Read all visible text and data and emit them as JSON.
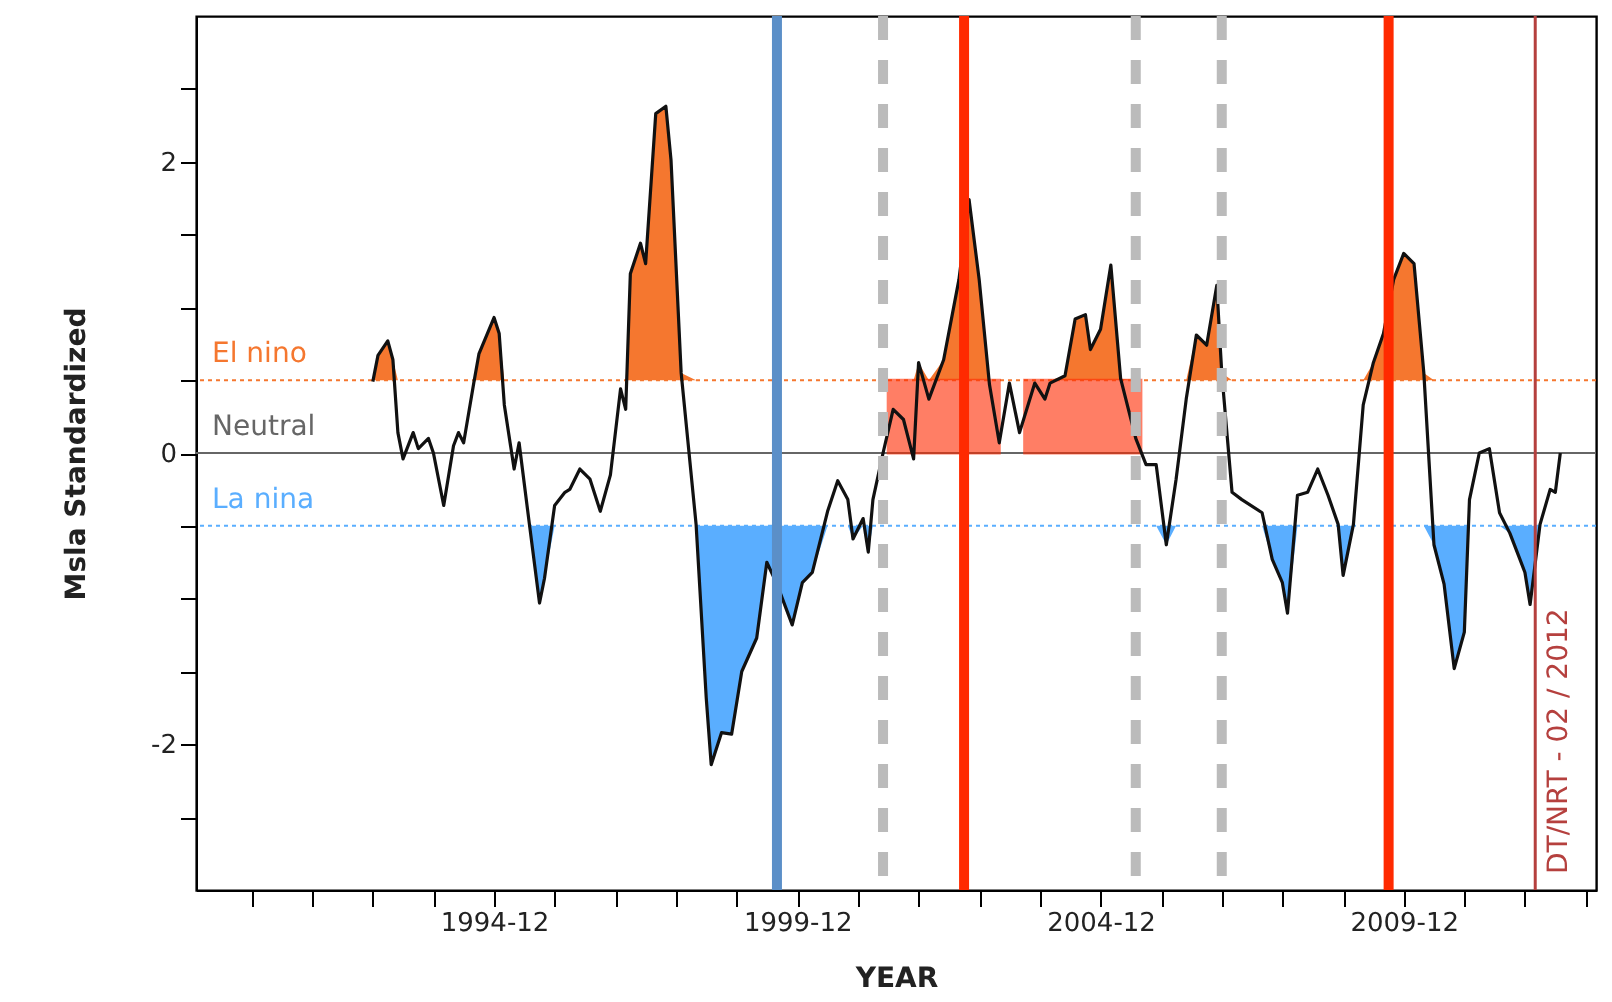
{
  "chart_data": {
    "type": "line",
    "xlabel": "YEAR",
    "ylabel": "Msla Standardized",
    "x": [
      "1992-12",
      "1993-01",
      "1993-03",
      "1993-04",
      "1993-05",
      "1993-06",
      "1993-08",
      "1993-09",
      "1993-11",
      "1993-12",
      "1994-02",
      "1994-04",
      "1994-05",
      "1994-06",
      "1994-08",
      "1994-09",
      "1994-12",
      "1995-01",
      "1995-02",
      "1995-04",
      "1995-05",
      "1995-07",
      "1995-09",
      "1995-10",
      "1995-12",
      "1996-02",
      "1996-03",
      "1996-05",
      "1996-07",
      "1996-09",
      "1996-11",
      "1997-01",
      "1997-02",
      "1997-03",
      "1997-05",
      "1997-06",
      "1997-08",
      "1997-10",
      "1997-11",
      "1998-01",
      "1998-04",
      "1998-06",
      "1998-07",
      "1998-09",
      "1998-11",
      "1999-01",
      "1999-04",
      "1999-06",
      "1999-08",
      "1999-11",
      "2000-01",
      "2000-03",
      "2000-06",
      "2000-08",
      "2000-10",
      "2000-11",
      "2001-01",
      "2001-02",
      "2001-03",
      "2001-05",
      "2001-07",
      "2001-09",
      "2001-11",
      "2001-12",
      "2002-02",
      "2002-05",
      "2002-08",
      "2002-10",
      "2002-12",
      "2003-02",
      "2003-04",
      "2003-06",
      "2003-08",
      "2003-11",
      "2004-01",
      "2004-02",
      "2004-05",
      "2004-07",
      "2004-09",
      "2004-10",
      "2004-12",
      "2005-02",
      "2005-04",
      "2005-07",
      "2005-09",
      "2005-11",
      "2006-01",
      "2006-03",
      "2006-05",
      "2006-07",
      "2006-09",
      "2006-11",
      "2006-12",
      "2007-02",
      "2007-04",
      "2007-08",
      "2007-10",
      "2007-12",
      "2008-01",
      "2008-03",
      "2008-05",
      "2008-07",
      "2008-09",
      "2008-11",
      "2008-12",
      "2009-02",
      "2009-04",
      "2009-06",
      "2009-08",
      "2009-10",
      "2009-12",
      "2010-02",
      "2010-04",
      "2010-06",
      "2010-08",
      "2010-10",
      "2010-12",
      "2011-01",
      "2011-03",
      "2011-05",
      "2011-07",
      "2011-09",
      "2011-11",
      "2011-12",
      "2012-01",
      "2012-03",
      "2012-05",
      "2012-06",
      "2012-07"
    ],
    "series": [
      {
        "color": "#111111",
        "values": [
          0.49,
          0.67,
          0.77,
          0.64,
          0.14,
          -0.04,
          0.14,
          0.03,
          0.1,
          0,
          -0.36,
          0.05,
          0.14,
          0.07,
          0.48,
          0.68,
          0.93,
          0.82,
          0.33,
          -0.11,
          0.07,
          -0.48,
          -1.03,
          -0.86,
          -0.36,
          -0.27,
          -0.25,
          -0.11,
          -0.18,
          -0.4,
          -0.15,
          0.44,
          0.3,
          1.23,
          1.44,
          1.3,
          2.33,
          2.38,
          2.01,
          0.55,
          -0.49,
          -1.68,
          -2.14,
          -1.92,
          -1.93,
          -1.5,
          -1.27,
          -0.75,
          -0.9,
          -1.18,
          -0.89,
          -0.82,
          -0.4,
          -0.19,
          -0.32,
          -0.59,
          -0.45,
          -0.68,
          -0.32,
          0,
          0.3,
          0.23,
          -0.04,
          0.62,
          0.37,
          0.64,
          1.19,
          1.74,
          1.19,
          0.47,
          0.07,
          0.48,
          0.14,
          0.48,
          0.37,
          0.48,
          0.53,
          0.92,
          0.95,
          0.71,
          0.85,
          1.29,
          0.51,
          0.1,
          -0.08,
          -0.08,
          -0.63,
          -0.18,
          0.37,
          0.81,
          0.74,
          1.15,
          0.55,
          -0.27,
          -0.32,
          -0.41,
          -0.73,
          -0.89,
          -1.1,
          -0.29,
          -0.27,
          -0.11,
          -0.29,
          -0.49,
          -0.84,
          -0.49,
          0.33,
          0.62,
          0.82,
          1.19,
          1.37,
          1.3,
          0.55,
          -0.63,
          -0.9,
          -1.48,
          -1.23,
          -0.32,
          0,
          0.03,
          -0.41,
          -0.55,
          -0.73,
          -0.82,
          -1.04,
          -0.49,
          -0.25,
          -0.27,
          0
        ]
      }
    ],
    "xlim": [
      "1990-01",
      "2013-02"
    ],
    "xticks": [
      {
        "value": "1990-12",
        "label": null
      },
      {
        "value": "1991-12",
        "label": null
      },
      {
        "value": "1992-12",
        "label": null
      },
      {
        "value": "1993-12",
        "label": null
      },
      "1994-12",
      {
        "value": "1995-12",
        "label": null
      },
      {
        "value": "1996-12",
        "label": null
      },
      {
        "value": "1997-12",
        "label": null
      },
      {
        "value": "1998-12",
        "label": null
      },
      "1999-12",
      {
        "value": "2000-12",
        "label": null
      },
      {
        "value": "2001-12",
        "label": null
      },
      {
        "value": "2002-12",
        "label": null
      },
      {
        "value": "2003-12",
        "label": null
      },
      "2004-12",
      {
        "value": "2005-12",
        "label": null
      },
      {
        "value": "2006-12",
        "label": null
      },
      {
        "value": "2007-12",
        "label": null
      },
      {
        "value": "2008-12",
        "label": null
      },
      "2009-12",
      {
        "value": "2010-12",
        "label": null
      },
      {
        "value": "2011-12",
        "label": null
      },
      {
        "value": "2012-12",
        "label": null
      }
    ],
    "ylim": [
      -3,
      3
    ],
    "yticks": [
      {
        "value": -2.5,
        "label": null
      },
      -2,
      {
        "value": -1.5,
        "label": null
      },
      {
        "value": -1,
        "label": null
      },
      {
        "value": -0.5,
        "label": null
      },
      0,
      {
        "value": 0.5,
        "label": null
      },
      {
        "value": 1,
        "label": null
      },
      {
        "value": 1.5,
        "label": null
      },
      2,
      {
        "value": 2.5,
        "label": null
      }
    ],
    "ref_lines": [
      {
        "axis": "y",
        "value": 0.5,
        "label": "El nino",
        "color": "#f5772f",
        "line_style": "dotted"
      },
      {
        "axis": "y",
        "value": 0,
        "label": "Neutral",
        "color": "#666666"
      },
      {
        "axis": "y",
        "value": -0.5,
        "label": "La nina",
        "color": "#5aaeff",
        "line_style": "dotted"
      },
      {
        "axis": "x",
        "value": "1999-08",
        "color": "#5b8fc8"
      },
      {
        "axis": "x",
        "value": "2001-05",
        "color": "#bbbbbb",
        "line_style": "dashed"
      },
      {
        "axis": "x",
        "value": "2002-09",
        "color": "#ff2a00"
      },
      {
        "axis": "x",
        "value": "2005-07",
        "color": "#bbbbbb",
        "line_style": "dashed"
      },
      {
        "axis": "x",
        "value": "2006-12",
        "color": "#bbbbbb",
        "line_style": "dashed"
      },
      {
        "axis": "x",
        "value": "2009-09",
        "color": "#ff2a00"
      },
      {
        "axis": "x",
        "value": "2012-02",
        "label": "DT/NRT - 02 / 2012",
        "color": "#b5403e"
      }
    ],
    "bands": [
      {
        "axis": "x",
        "from": "2001-06",
        "to": "2003-04",
        "color": "#ff2a00"
      },
      {
        "axis": "x",
        "from": "2003-09",
        "to": "2005-08",
        "color": "#ff2a00"
      }
    ],
    "grid": false,
    "line_style": "solid"
  }
}
